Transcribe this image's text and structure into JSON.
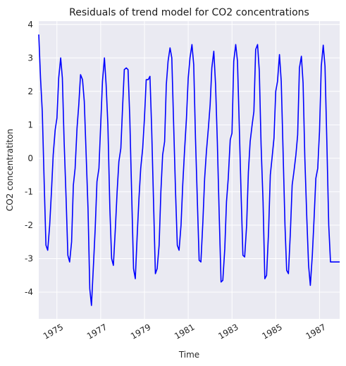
{
  "chart_data": {
    "type": "line",
    "title": "Residuals of trend model for CO2 concentrations",
    "xlabel": "Time",
    "ylabel": "CO2 concentratiton",
    "xlim": [
      1974.17,
      1987.92
    ],
    "ylim": [
      -4.8,
      4.1
    ],
    "xticks": [
      1975,
      1977,
      1979,
      1981,
      1983,
      1985,
      1987
    ],
    "yticks": [
      -4,
      -3,
      -2,
      -1,
      0,
      1,
      2,
      3,
      4
    ],
    "grid": true,
    "background": "#eaeaf2",
    "grid_color": "#ffffff",
    "series": [
      {
        "color": "#0000ff",
        "x": [
          1974.17,
          1974.25,
          1974.33,
          1974.42,
          1974.5,
          1974.58,
          1974.67,
          1974.75,
          1974.83,
          1974.92,
          1975.0,
          1975.08,
          1975.17,
          1975.25,
          1975.33,
          1975.42,
          1975.5,
          1975.58,
          1975.67,
          1975.75,
          1975.83,
          1975.92,
          1976.0,
          1976.08,
          1976.17,
          1976.25,
          1976.33,
          1976.42,
          1976.5,
          1976.58,
          1976.67,
          1976.75,
          1976.83,
          1976.92,
          1977.0,
          1977.08,
          1977.17,
          1977.25,
          1977.33,
          1977.42,
          1977.5,
          1977.58,
          1977.67,
          1977.75,
          1977.83,
          1977.92,
          1978.0,
          1978.08,
          1978.17,
          1978.25,
          1978.33,
          1978.42,
          1978.5,
          1978.58,
          1978.67,
          1978.75,
          1978.83,
          1978.92,
          1979.0,
          1979.08,
          1979.17,
          1979.25,
          1979.33,
          1979.42,
          1979.5,
          1979.58,
          1979.67,
          1979.75,
          1979.83,
          1979.92,
          1980.0,
          1980.08,
          1980.17,
          1980.25,
          1980.33,
          1980.42,
          1980.5,
          1980.58,
          1980.67,
          1980.75,
          1980.83,
          1980.92,
          1981.0,
          1981.08,
          1981.17,
          1981.25,
          1981.33,
          1981.42,
          1981.5,
          1981.58,
          1981.67,
          1981.75,
          1981.83,
          1981.92,
          1982.0,
          1982.08,
          1982.17,
          1982.25,
          1982.33,
          1982.42,
          1982.5,
          1982.58,
          1982.67,
          1982.75,
          1982.83,
          1982.92,
          1983.0,
          1983.08,
          1983.17,
          1983.25,
          1983.33,
          1983.42,
          1983.5,
          1983.58,
          1983.67,
          1983.75,
          1983.83,
          1983.92,
          1984.0,
          1984.08,
          1984.17,
          1984.25,
          1984.33,
          1984.42,
          1984.5,
          1984.58,
          1984.67,
          1984.75,
          1984.83,
          1984.92,
          1985.0,
          1985.08,
          1985.17,
          1985.25,
          1985.33,
          1985.42,
          1985.5,
          1985.58,
          1985.67,
          1985.75,
          1985.83,
          1985.92,
          1986.0,
          1986.08,
          1986.17,
          1986.25,
          1986.33,
          1986.42,
          1986.5,
          1986.58,
          1986.67,
          1986.75,
          1986.83,
          1986.92,
          1987.0,
          1987.08,
          1987.17,
          1987.25,
          1987.33,
          1987.42,
          1987.5,
          1987.58,
          1987.67,
          1987.75,
          1987.83,
          1987.92
        ],
        "y": [
          3.7,
          2.4,
          1.4,
          -0.8,
          -2.6,
          -2.75,
          -2.0,
          -1.0,
          0.1,
          0.85,
          1.2,
          2.4,
          3.0,
          2.4,
          0.5,
          -1.2,
          -2.9,
          -3.1,
          -2.5,
          -0.8,
          -0.3,
          0.9,
          1.6,
          2.5,
          2.35,
          1.7,
          0.2,
          -1.5,
          -3.9,
          -4.4,
          -3.2,
          -2.1,
          -0.7,
          -0.3,
          1.0,
          2.3,
          3.0,
          2.2,
          1.0,
          -1.5,
          -3.0,
          -3.2,
          -2.1,
          -1.0,
          -0.1,
          0.3,
          1.5,
          2.65,
          2.7,
          2.65,
          1.2,
          -1.2,
          -3.3,
          -3.6,
          -2.3,
          -1.2,
          -0.3,
          0.3,
          1.2,
          2.35,
          2.35,
          2.45,
          0.9,
          -1.4,
          -3.45,
          -3.3,
          -2.6,
          -1.0,
          0.1,
          0.5,
          2.2,
          2.9,
          3.3,
          3.0,
          1.1,
          -1.0,
          -2.6,
          -2.75,
          -2.0,
          -0.8,
          0.2,
          1.2,
          2.4,
          3.0,
          3.4,
          2.8,
          0.6,
          -1.3,
          -3.05,
          -3.1,
          -1.9,
          -0.6,
          0.2,
          0.9,
          1.6,
          2.7,
          3.2,
          2.2,
          0.5,
          -1.8,
          -3.7,
          -3.65,
          -2.7,
          -1.3,
          -0.6,
          0.55,
          0.75,
          2.9,
          3.4,
          2.9,
          1.0,
          -1.2,
          -2.9,
          -2.95,
          -2.0,
          -0.4,
          0.5,
          1.0,
          1.4,
          3.25,
          3.4,
          2.6,
          0.4,
          -1.3,
          -3.6,
          -3.5,
          -2.2,
          -0.5,
          0.0,
          0.6,
          2.0,
          2.3,
          3.1,
          2.3,
          0.3,
          -2.0,
          -3.35,
          -3.45,
          -2.2,
          -0.8,
          -0.4,
          0.1,
          0.7,
          2.7,
          3.05,
          2.25,
          0.0,
          -1.8,
          -3.2,
          -3.8,
          -2.9,
          -1.8,
          -0.6,
          -0.3,
          0.8,
          2.75,
          3.38,
          2.75,
          0.6,
          -2.0,
          -3.1,
          -3.1,
          -3.1,
          -3.1,
          -3.1,
          -3.1
        ]
      }
    ]
  }
}
